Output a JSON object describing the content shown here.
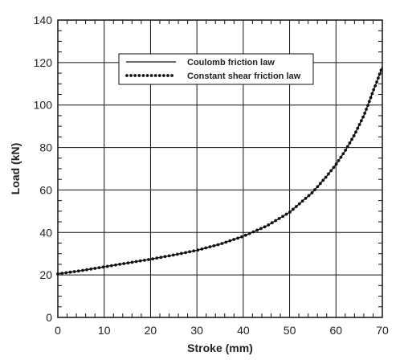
{
  "chart_data": {
    "type": "line",
    "title": "",
    "xlabel": "Stroke (mm)",
    "ylabel": "Load (kN)",
    "xlim": [
      0,
      70
    ],
    "ylim": [
      0,
      140
    ],
    "x_ticks": [
      0,
      10,
      20,
      30,
      40,
      50,
      60,
      70
    ],
    "y_ticks": [
      0,
      20,
      40,
      60,
      80,
      100,
      120,
      140
    ],
    "x_tick_labels": [
      "0",
      "10",
      "20",
      "30",
      "40",
      "50",
      "60",
      "70"
    ],
    "y_tick_labels": [
      "0",
      "20",
      "40",
      "60",
      "80",
      "100",
      "120",
      "140"
    ],
    "grid": true,
    "legend_position": "top-center",
    "series": [
      {
        "name": "Coulomb friction law",
        "style": "solid",
        "color": "#111111",
        "x": [
          0,
          5,
          10,
          15,
          20,
          25,
          30,
          35,
          40,
          45,
          50,
          55,
          58,
          60,
          62,
          64,
          66,
          67,
          68,
          69,
          70
        ],
        "y": [
          20.5,
          22,
          23.8,
          25.6,
          27.4,
          29.4,
          31.6,
          34.5,
          38.2,
          43,
          49.5,
          59,
          66.5,
          72,
          78.5,
          86,
          95,
          100.5,
          106.5,
          112,
          118
        ]
      },
      {
        "name": "Constant shear friction law",
        "style": "dotted",
        "color": "#111111",
        "x": [
          0,
          5,
          10,
          15,
          20,
          25,
          30,
          35,
          40,
          45,
          50,
          55,
          58,
          60,
          62,
          64,
          66,
          67,
          68,
          69,
          70
        ],
        "y": [
          20.5,
          22,
          23.8,
          25.6,
          27.4,
          29.4,
          31.6,
          34.5,
          38.2,
          43,
          49.5,
          59,
          66.5,
          72,
          78.5,
          86,
          95,
          100.5,
          106.5,
          112,
          118
        ]
      }
    ]
  }
}
